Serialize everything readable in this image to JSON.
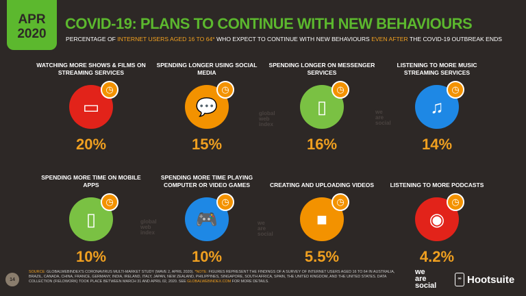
{
  "header": {
    "date_month": "APR",
    "date_year": "2020",
    "title": "COVID-19: PLANS TO CONTINUE WITH NEW BEHAVIOURS",
    "subtitle_1": "PERCENTAGE OF ",
    "subtitle_hl1": "INTERNET USERS AGED 16 TO 64*",
    "subtitle_2": " WHO EXPECT TO CONTINUE WITH NEW BEHAVIOURS ",
    "subtitle_hl2": "EVEN AFTER",
    "subtitle_3": " THE COVID-19 OUTBREAK ENDS"
  },
  "colors": {
    "accent": "#5cb82e",
    "highlight": "#f0a020"
  },
  "items": [
    {
      "label": "WATCHING MORE SHOWS & FILMS ON STREAMING SERVICES",
      "value": "20%",
      "icon": "tv-icon",
      "glyph": "▭",
      "color": "#e2231a"
    },
    {
      "label": "SPENDING LONGER USING SOCIAL MEDIA",
      "value": "15%",
      "icon": "chat-bubbles-icon",
      "glyph": "💬",
      "color": "#f39200"
    },
    {
      "label": "SPENDING LONGER ON MESSENGER SERVICES",
      "value": "16%",
      "icon": "phone-chat-icon",
      "glyph": "▯",
      "color": "#7ac143"
    },
    {
      "label": "LISTENING TO MORE MUSIC STREAMING SERVICES",
      "value": "14%",
      "icon": "cloud-music-icon",
      "glyph": "♫",
      "color": "#1e88e5"
    },
    {
      "label": "SPENDING MORE TIME ON MOBILE APPS",
      "value": "10%",
      "icon": "mobile-app-icon",
      "glyph": "▯",
      "color": "#7ac143"
    },
    {
      "label": "SPENDING MORE TIME PLAYING COMPUTER OR VIDEO GAMES",
      "value": "10%",
      "icon": "gamepad-icon",
      "glyph": "🎮",
      "color": "#1e88e5"
    },
    {
      "label": "CREATING AND UPLOADING VIDEOS",
      "value": "5.5%",
      "icon": "video-camera-icon",
      "glyph": "■",
      "color": "#f39200"
    },
    {
      "label": "LISTENING TO MORE PODCASTS",
      "value": "4.2%",
      "icon": "podcast-icon",
      "glyph": "◉",
      "color": "#e2231a"
    }
  ],
  "footer": {
    "page": "14",
    "source_label": "SOURCE:",
    "source": " GLOBALWEBINDEX'S CORONAVIRUS MULTI-MARKET STUDY (WAVE 2, APRIL 2020). ",
    "note_label": "*NOTE:",
    "note": " FIGURES REPRESENT THE FINDINGS OF A SURVEY OF INTERNET USERS AGED 16 TO 64 IN AUSTRALIA, BRAZIL, CANADA, CHINA, FRANCE, GERMANY, INDIA, IRELAND, ITALY, JAPAN, NEW ZEALAND, PHILIPPINES, SINGAPORE, SOUTH AFRICA, SPAIN, THE UNITED KINGDOM, AND THE UNITED STATES. DATA COLLECTION (FIELDWORK) TOOK PLACE BETWEEN MARCH 31 AND APRIL 02, 2020. SEE ",
    "link": "GLOBALWEBINDEX.COM",
    "tail": " FOR MORE DETAILS.",
    "brand1": "we are social",
    "brand2": "Hootsuite"
  }
}
